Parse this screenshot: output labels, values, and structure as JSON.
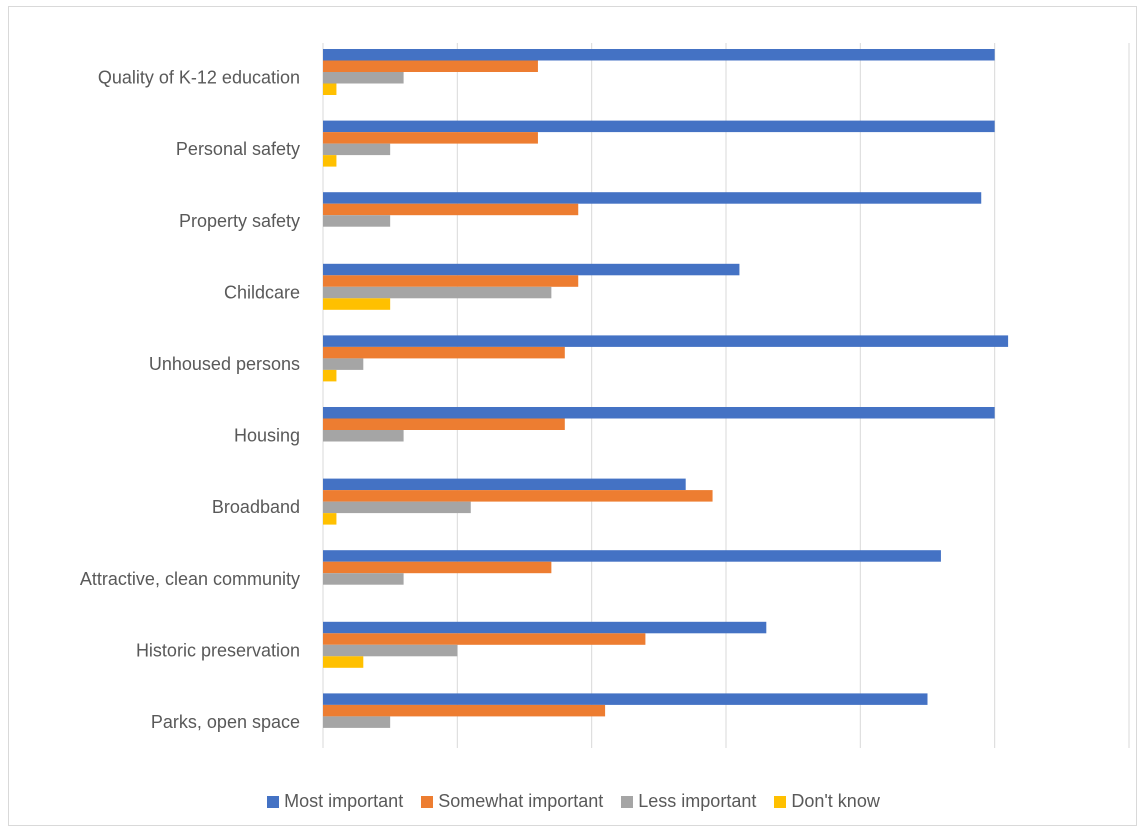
{
  "chart_data": {
    "type": "bar",
    "orientation": "horizontal",
    "categories": [
      "Quality of K-12 education",
      "Personal safety",
      "Property safety",
      "Childcare",
      "Unhoused persons",
      "Housing",
      "Broadband",
      "Attractive, clean community",
      "Historic preservation",
      "Parks, open space"
    ],
    "series": [
      {
        "name": "Most important",
        "color": "#4472C4",
        "values": [
          50,
          50,
          49,
          31,
          51,
          50,
          27,
          46,
          33,
          45
        ]
      },
      {
        "name": "Somewhat important",
        "color": "#ED7D31",
        "values": [
          16,
          16,
          19,
          19,
          18,
          18,
          29,
          17,
          24,
          21
        ]
      },
      {
        "name": "Less important",
        "color": "#A5A5A5",
        "values": [
          6,
          5,
          5,
          17,
          3,
          6,
          11,
          6,
          10,
          5
        ]
      },
      {
        "name": "Don't know",
        "color": "#FFC000",
        "values": [
          1,
          1,
          0,
          5,
          1,
          0,
          1,
          0,
          3,
          0
        ]
      }
    ],
    "xlim": [
      0,
      60
    ],
    "x_gridlines": [
      0,
      10,
      20,
      30,
      40,
      50,
      60
    ],
    "grid": true,
    "x_tick_labels_shown": false,
    "legend_position": "bottom",
    "title": "",
    "xlabel": "",
    "ylabel": ""
  }
}
